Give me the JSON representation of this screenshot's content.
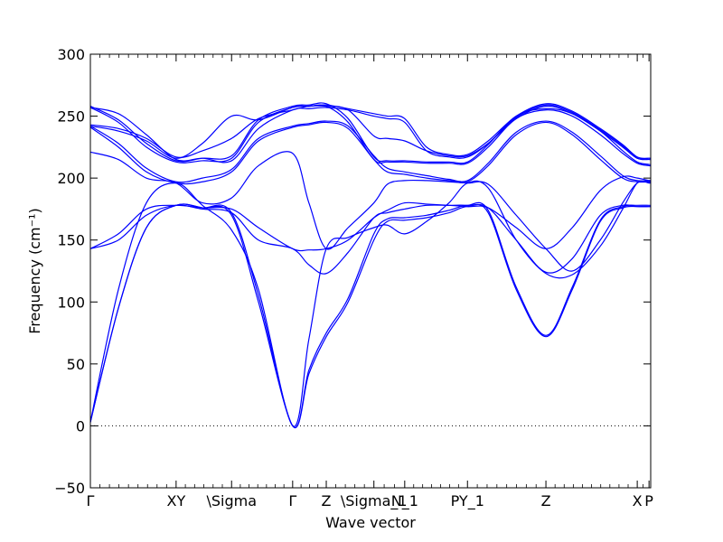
{
  "chart_data": {
    "type": "line",
    "xlabel": "Wave vector",
    "ylabel": "Frequency (cm⁻¹)",
    "ylim": [
      -50,
      300
    ],
    "yticks": [
      -50,
      0,
      50,
      100,
      150,
      200,
      250,
      300
    ],
    "xlim": [
      0,
      1
    ],
    "zero_line": {
      "y": 0,
      "style": "dotted"
    },
    "grid": false,
    "line_color": "#0000ff",
    "high_symmetry_points": [
      {
        "label": "Γ",
        "x": 0.0
      },
      {
        "label": "XY",
        "x": 0.153
      },
      {
        "label": "\\Sigma",
        "x": 0.252
      },
      {
        "label": "Γ",
        "x": 0.361
      },
      {
        "label": "Z",
        "x": 0.421
      },
      {
        "label": "\\Sigma_1",
        "x": 0.506
      },
      {
        "label": "N_1",
        "x": 0.561
      },
      {
        "label": "PY_1",
        "x": 0.673
      },
      {
        "label": "Z",
        "x": 0.813
      },
      {
        "label": "X",
        "x": 0.976
      },
      {
        "label": "P",
        "x": 0.997
      }
    ],
    "series": [
      {
        "x": [
          0.0,
          0.05,
          0.1,
          0.153,
          0.2,
          0.252,
          0.3,
          0.361,
          0.39,
          0.421,
          0.46,
          0.506,
          0.53,
          0.561,
          0.6,
          0.64,
          0.673,
          0.71,
          0.76,
          0.813,
          0.86,
          0.91,
          0.95,
          0.976,
          0.997,
          1.0
        ],
        "y": [
          3,
          95,
          160,
          178,
          176,
          170,
          100,
          0,
          42,
          72,
          100,
          150,
          165,
          166,
          168,
          172,
          177,
          172,
          110,
          72,
          110,
          165,
          176,
          177,
          177,
          177
        ]
      },
      {
        "x": [
          0.0,
          0.05,
          0.1,
          0.153,
          0.2,
          0.252,
          0.3,
          0.361,
          0.39,
          0.421,
          0.46,
          0.506,
          0.53,
          0.561,
          0.6,
          0.64,
          0.673,
          0.71,
          0.76,
          0.813,
          0.86,
          0.91,
          0.95,
          0.976,
          0.997,
          1.0
        ],
        "y": [
          3,
          95,
          160,
          178,
          176,
          172,
          105,
          0,
          45,
          75,
          103,
          155,
          167,
          168,
          170,
          174,
          178,
          174,
          112,
          73,
          112,
          166,
          177,
          178,
          178,
          178
        ]
      },
      {
        "x": [
          0.0,
          0.05,
          0.1,
          0.153,
          0.2,
          0.252,
          0.3,
          0.361,
          0.39,
          0.421,
          0.46,
          0.506,
          0.53,
          0.561,
          0.6,
          0.64,
          0.673,
          0.71,
          0.76,
          0.813,
          0.86,
          0.91,
          0.95,
          0.976,
          0.997,
          1.0
        ],
        "y": [
          3,
          110,
          180,
          196,
          178,
          158,
          110,
          0,
          70,
          143,
          152,
          160,
          162,
          155,
          165,
          180,
          196,
          192,
          150,
          123,
          122,
          145,
          175,
          196,
          196,
          196
        ]
      },
      {
        "x": [
          0.0,
          0.05,
          0.1,
          0.153,
          0.2,
          0.252,
          0.3,
          0.361,
          0.39,
          0.421,
          0.46,
          0.506,
          0.53,
          0.561,
          0.6,
          0.64,
          0.673,
          0.71,
          0.76,
          0.813,
          0.86,
          0.91,
          0.95,
          0.976,
          0.997,
          1.0
        ],
        "y": [
          143,
          150,
          170,
          178,
          175,
          172,
          150,
          143,
          130,
          123,
          140,
          168,
          172,
          175,
          178,
          178,
          178,
          176,
          150,
          124,
          135,
          170,
          178,
          177,
          177,
          177
        ]
      },
      {
        "x": [
          0.0,
          0.05,
          0.1,
          0.153,
          0.2,
          0.252,
          0.3,
          0.361,
          0.39,
          0.421,
          0.46,
          0.506,
          0.53,
          0.561,
          0.6,
          0.64,
          0.673,
          0.71,
          0.76,
          0.813,
          0.86,
          0.91,
          0.95,
          0.976,
          0.997,
          1.0
        ],
        "y": [
          143,
          155,
          175,
          178,
          176,
          175,
          160,
          143,
          142,
          143,
          150,
          168,
          174,
          180,
          179,
          178,
          177,
          176,
          160,
          143,
          160,
          190,
          201,
          200,
          198,
          198
        ]
      },
      {
        "x": [
          0.0,
          0.05,
          0.1,
          0.153,
          0.2,
          0.252,
          0.3,
          0.361,
          0.39,
          0.421,
          0.46,
          0.506,
          0.53,
          0.561,
          0.6,
          0.64,
          0.673,
          0.71,
          0.76,
          0.813,
          0.86,
          0.91,
          0.95,
          0.976,
          0.997,
          1.0
        ],
        "y": [
          221,
          215,
          200,
          196,
          180,
          184,
          210,
          220,
          180,
          143,
          160,
          180,
          195,
          198,
          198,
          197,
          196,
          195,
          170,
          143,
          125,
          150,
          180,
          196,
          197,
          197
        ]
      },
      {
        "x": [
          0.0,
          0.05,
          0.1,
          0.153,
          0.2,
          0.252,
          0.3,
          0.361,
          0.39,
          0.421,
          0.46,
          0.506,
          0.53,
          0.561,
          0.6,
          0.64,
          0.673,
          0.71,
          0.76,
          0.813,
          0.86,
          0.91,
          0.95,
          0.976,
          0.997,
          1.0
        ],
        "y": [
          241,
          225,
          205,
          196,
          197,
          205,
          230,
          241,
          243,
          245,
          240,
          215,
          205,
          203,
          200,
          198,
          197,
          210,
          235,
          245,
          235,
          215,
          200,
          197,
          197,
          197
        ]
      },
      {
        "x": [
          0.0,
          0.05,
          0.1,
          0.153,
          0.2,
          0.252,
          0.3,
          0.361,
          0.39,
          0.421,
          0.46,
          0.506,
          0.53,
          0.561,
          0.6,
          0.64,
          0.673,
          0.71,
          0.76,
          0.813,
          0.86,
          0.91,
          0.95,
          0.976,
          0.997,
          1.0
        ],
        "y": [
          242,
          228,
          208,
          197,
          200,
          207,
          232,
          242,
          244,
          246,
          242,
          218,
          208,
          205,
          202,
          199,
          198,
          212,
          237,
          246,
          237,
          218,
          202,
          198,
          198,
          198
        ]
      },
      {
        "x": [
          0.0,
          0.05,
          0.1,
          0.153,
          0.2,
          0.252,
          0.3,
          0.361,
          0.39,
          0.421,
          0.46,
          0.506,
          0.53,
          0.561,
          0.6,
          0.64,
          0.673,
          0.71,
          0.76,
          0.813,
          0.86,
          0.91,
          0.95,
          0.976,
          0.997,
          1.0
        ],
        "y": [
          257,
          245,
          225,
          213,
          214,
          216,
          245,
          257,
          258,
          258,
          245,
          215,
          213,
          213,
          212,
          212,
          212,
          225,
          248,
          255,
          250,
          235,
          220,
          212,
          210,
          210
        ]
      },
      {
        "x": [
          0.0,
          0.05,
          0.1,
          0.153,
          0.2,
          0.252,
          0.3,
          0.361,
          0.39,
          0.421,
          0.46,
          0.506,
          0.53,
          0.561,
          0.6,
          0.64,
          0.673,
          0.71,
          0.76,
          0.813,
          0.86,
          0.91,
          0.95,
          0.976,
          0.997,
          1.0
        ],
        "y": [
          258,
          247,
          228,
          214,
          216,
          218,
          247,
          258,
          259,
          260,
          248,
          217,
          214,
          214,
          213,
          213,
          213,
          227,
          250,
          256,
          252,
          238,
          222,
          213,
          211,
          211
        ]
      },
      {
        "x": [
          0.0,
          0.05,
          0.1,
          0.153,
          0.2,
          0.252,
          0.3,
          0.361,
          0.39,
          0.421,
          0.46,
          0.506,
          0.53,
          0.561,
          0.6,
          0.64,
          0.673,
          0.71,
          0.76,
          0.813,
          0.86,
          0.91,
          0.95,
          0.976,
          0.997,
          1.0
        ],
        "y": [
          243,
          240,
          232,
          217,
          222,
          232,
          248,
          255,
          258,
          258,
          255,
          234,
          232,
          230,
          222,
          218,
          218,
          228,
          248,
          258,
          252,
          238,
          225,
          216,
          216,
          216
        ]
      },
      {
        "x": [
          0.0,
          0.05,
          0.1,
          0.153,
          0.2,
          0.252,
          0.3,
          0.361,
          0.39,
          0.421,
          0.46,
          0.506,
          0.53,
          0.561,
          0.6,
          0.64,
          0.673,
          0.71,
          0.76,
          0.813,
          0.86,
          0.91,
          0.95,
          0.976,
          0.997,
          1.0
        ],
        "y": [
          242,
          238,
          230,
          216,
          228,
          250,
          247,
          257,
          258,
          259,
          256,
          252,
          250,
          248,
          225,
          219,
          219,
          230,
          250,
          260,
          254,
          240,
          227,
          217,
          216,
          216
        ]
      },
      {
        "x": [
          0.0,
          0.05,
          0.1,
          0.153,
          0.2,
          0.252,
          0.3,
          0.361,
          0.39,
          0.421,
          0.46,
          0.506,
          0.53,
          0.561,
          0.6,
          0.64,
          0.673,
          0.71,
          0.76,
          0.813,
          0.86,
          0.91,
          0.95,
          0.976,
          0.997,
          1.0
        ],
        "y": [
          257,
          252,
          235,
          215,
          216,
          214,
          240,
          255,
          256,
          257,
          255,
          250,
          248,
          245,
          222,
          217,
          217,
          228,
          249,
          259,
          253,
          239,
          226,
          216,
          215,
          215
        ]
      }
    ]
  }
}
